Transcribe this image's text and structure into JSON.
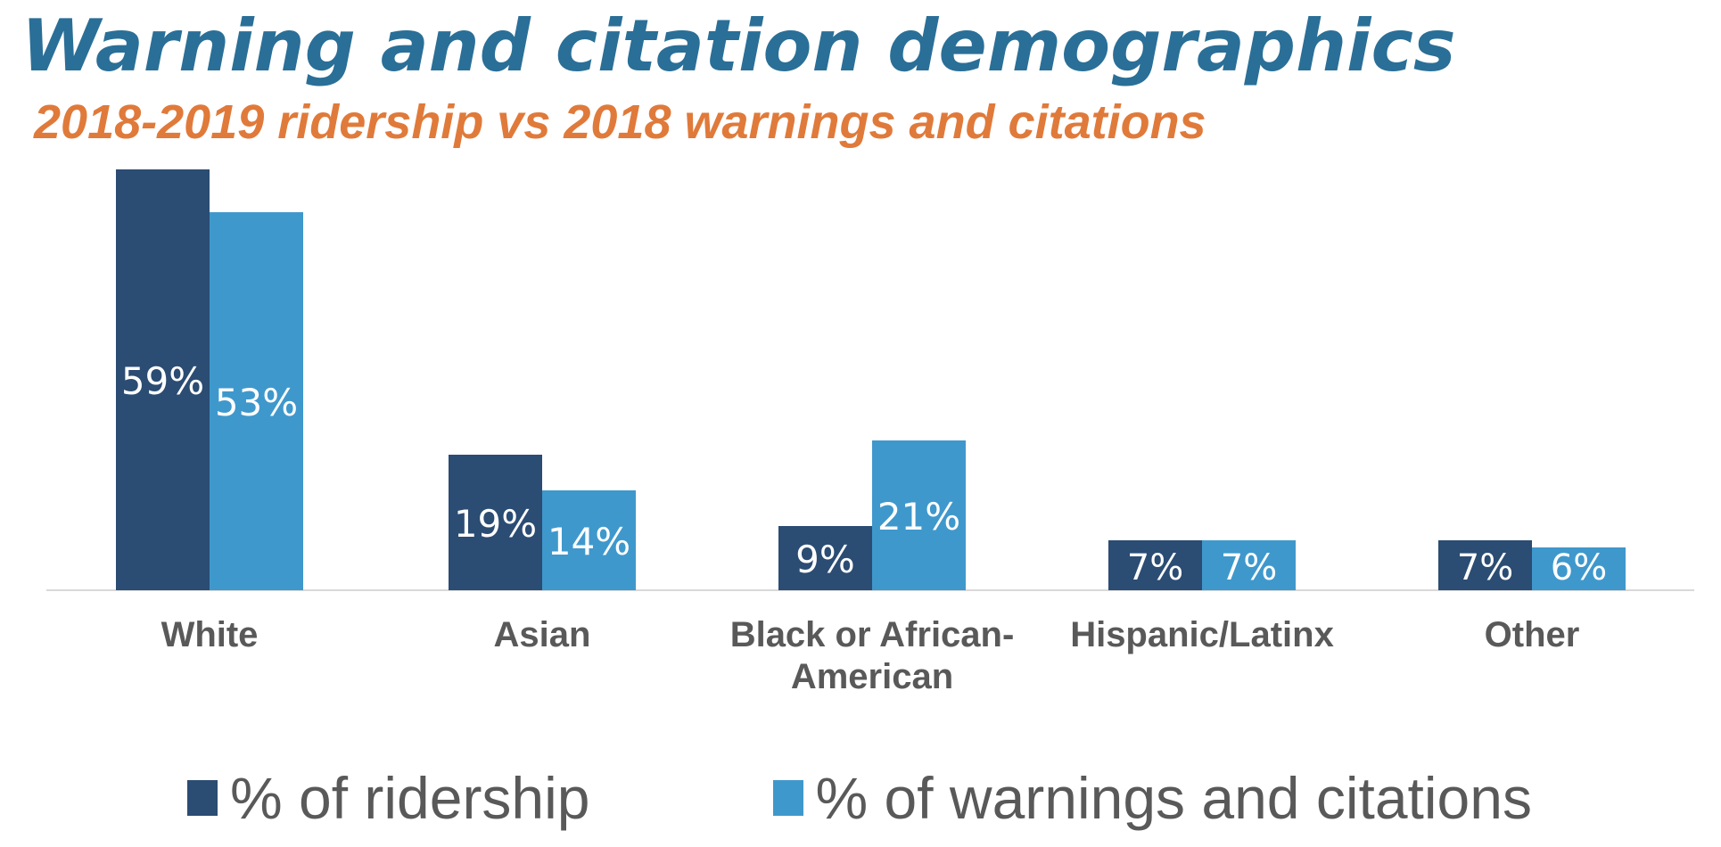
{
  "title": "Warning and citation demographics",
  "subtitle": "2018-2019 ridership vs 2018 warnings and citations",
  "chart_data": {
    "type": "bar",
    "categories": [
      [
        "White"
      ],
      [
        "Asian"
      ],
      [
        "Black or African-",
        "American"
      ],
      [
        "Hispanic/Latinx"
      ],
      [
        "Other"
      ]
    ],
    "series": [
      {
        "name": "% of ridership",
        "color": "#2b4c73",
        "values": [
          59,
          19,
          9,
          7,
          7
        ],
        "labels": [
          "59%",
          "19%",
          "9%",
          "7%",
          "7%"
        ]
      },
      {
        "name": "% of warnings and citations",
        "color": "#3f98cc",
        "values": [
          53,
          14,
          21,
          7,
          6
        ],
        "labels": [
          "53%",
          "14%",
          "21%",
          "7%",
          "6%"
        ]
      }
    ],
    "ylim": [
      0,
      59
    ],
    "legend_position": "bottom",
    "grid": false
  }
}
